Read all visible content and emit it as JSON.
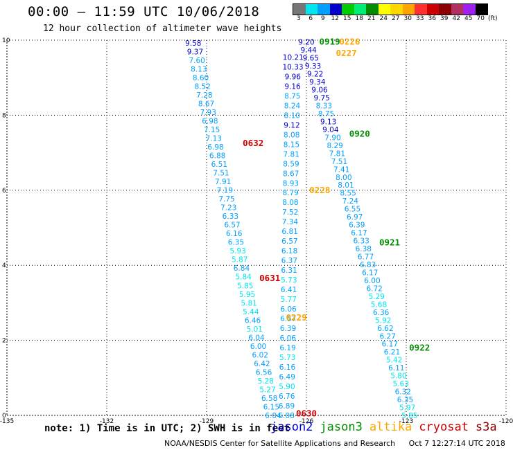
{
  "header": {
    "title": "00:00 – 11:59 UTC 10/06/2018",
    "subtitle": "12 hour collection of altimeter wave heights"
  },
  "colorbar": {
    "colors": [
      "#777777",
      "#00e5ee",
      "#00a0ff",
      "#0000cd",
      "#00cd00",
      "#00ee76",
      "#008b00",
      "#ffff00",
      "#ffd700",
      "#ffa500",
      "#ff3030",
      "#cd0000",
      "#8b0000",
      "#b03060",
      "#a020f0",
      "#000000"
    ],
    "labels": [
      "3",
      "6",
      "9",
      "12",
      "15",
      "18",
      "21",
      "24",
      "27",
      "30",
      "33",
      "36",
      "39",
      "42",
      "45",
      "70",
      "(ft)"
    ]
  },
  "axes": {
    "x_ticks": [
      "-135",
      "-132",
      "-129",
      "-126",
      "-123",
      "-120"
    ],
    "y_ticks": [
      "0",
      "2",
      "4",
      "6",
      "8",
      "10"
    ]
  },
  "chart_data": {
    "type": "scatter",
    "xlim": [
      -135,
      -120
    ],
    "ylim": [
      0,
      10
    ],
    "grid": true,
    "x_unit": "longitude",
    "y_unit": "latitude",
    "time_labels": [
      {
        "text": "0632",
        "sat": "cryosat",
        "lon": -127.6,
        "lat": 7.25
      },
      {
        "text": "0631",
        "sat": "cryosat",
        "lon": -127.1,
        "lat": 3.65
      },
      {
        "text": "0630",
        "sat": "cryosat",
        "lon": -126.0,
        "lat": 0.05
      },
      {
        "text": "0226",
        "sat": "altika",
        "lon": -124.7,
        "lat": 9.95
      },
      {
        "text": "0227",
        "sat": "altika",
        "lon": -124.8,
        "lat": 9.65
      },
      {
        "text": "0228",
        "sat": "altika",
        "lon": -125.6,
        "lat": 6.0
      },
      {
        "text": "0229",
        "sat": "altika",
        "lon": -126.3,
        "lat": 2.6
      },
      {
        "text": "0919",
        "sat": "jason3",
        "lon": -125.3,
        "lat": 9.95
      },
      {
        "text": "0920",
        "sat": "jason3",
        "lon": -124.4,
        "lat": 7.5
      },
      {
        "text": "0921",
        "sat": "jason3",
        "lon": -123.5,
        "lat": 4.6
      },
      {
        "text": "0922",
        "sat": "jason3",
        "lon": -122.6,
        "lat": 1.8
      }
    ],
    "tracks": [
      {
        "name": "cryosat",
        "sat": "cryosat",
        "lon_start": -129.4,
        "lat_start": 9.93,
        "lon_end": -127.0,
        "lat_end": 0.0,
        "values": [
          "9.58",
          "9.37",
          "7.60",
          "8.13",
          "8.60",
          "8.52",
          "7.28",
          "8.67",
          "7.93",
          "6.98",
          "7.15",
          "7.13",
          "6.98",
          "6.88",
          "6.51",
          "7.51",
          "7.91",
          "7.19",
          "7.75",
          "7.23",
          "6.33",
          "6.57",
          "6.16",
          "6.35",
          "5.93",
          "5.87",
          "6.84",
          "5.84",
          "5.85",
          "5.95",
          "5.81",
          "5.44",
          "6.46",
          "5.01",
          "6.04",
          "6.00",
          "6.02",
          "6.42",
          "6.56",
          "5.28",
          "5.27",
          "6.58",
          "6.15",
          "6.04"
        ]
      },
      {
        "name": "altika",
        "sat": "altika",
        "lon_start": -126.4,
        "lat_start": 9.55,
        "lon_end": -126.6,
        "lat_end": 0.0,
        "values": [
          "10.21",
          "10.33",
          "9.96",
          "9.16",
          "8.75",
          "8.24",
          "8.10",
          "9.12",
          "8.08",
          "8.15",
          "7.81",
          "8.59",
          "8.67",
          "8.93",
          "8.79",
          "8.08",
          "7.52",
          "7.34",
          "6.81",
          "6.57",
          "6.18",
          "6.37",
          "6.31",
          "5.73",
          "6.41",
          "5.77",
          "6.06",
          "6.57",
          "6.39",
          "6.06",
          "6.19",
          "5.73",
          "6.16",
          "6.49",
          "5.90",
          "6.76",
          "6.89",
          "6.08"
        ]
      },
      {
        "name": "jason3",
        "sat": "jason3",
        "lon_start": -126.0,
        "lat_start": 9.95,
        "lon_end": -122.9,
        "lat_end": 0.0,
        "values": [
          "9.20",
          "9.44",
          "9.65",
          "9.33",
          "9.22",
          "9.34",
          "9.06",
          "9.75",
          "8.33",
          "8.75",
          "9.13",
          "9.04",
          "7.90",
          "8.29",
          "7.81",
          "7.51",
          "7.41",
          "8.00",
          "8.01",
          "8.55",
          "7.24",
          "6.55",
          "6.97",
          "6.39",
          "6.17",
          "6.33",
          "6.38",
          "6.77",
          "6.83",
          "6.17",
          "6.00",
          "6.72",
          "5.29",
          "5.68",
          "6.36",
          "5.92",
          "6.62",
          "6.27",
          "6.17",
          "6.21",
          "5.42",
          "6.11",
          "5.80",
          "5.63",
          "6.32",
          "6.35",
          "5.97",
          "5.85"
        ]
      }
    ]
  },
  "footer": {
    "note": "note: 1) Time is in UTC; 2) SWH is in feet",
    "satellites": [
      {
        "name": "jason2",
        "color": "#0000cd"
      },
      {
        "name": "jason3",
        "color": "#008b00"
      },
      {
        "name": "altika",
        "color": "#ffa500"
      },
      {
        "name": "cryosat",
        "color": "#cd0000"
      },
      {
        "name": "s3a",
        "color": "#8b0000"
      }
    ],
    "agency": "NOAA/NESDIS Center for Satellite Applications and Research",
    "timestamp": "Oct  7 12:27:14 UTC 2018"
  }
}
